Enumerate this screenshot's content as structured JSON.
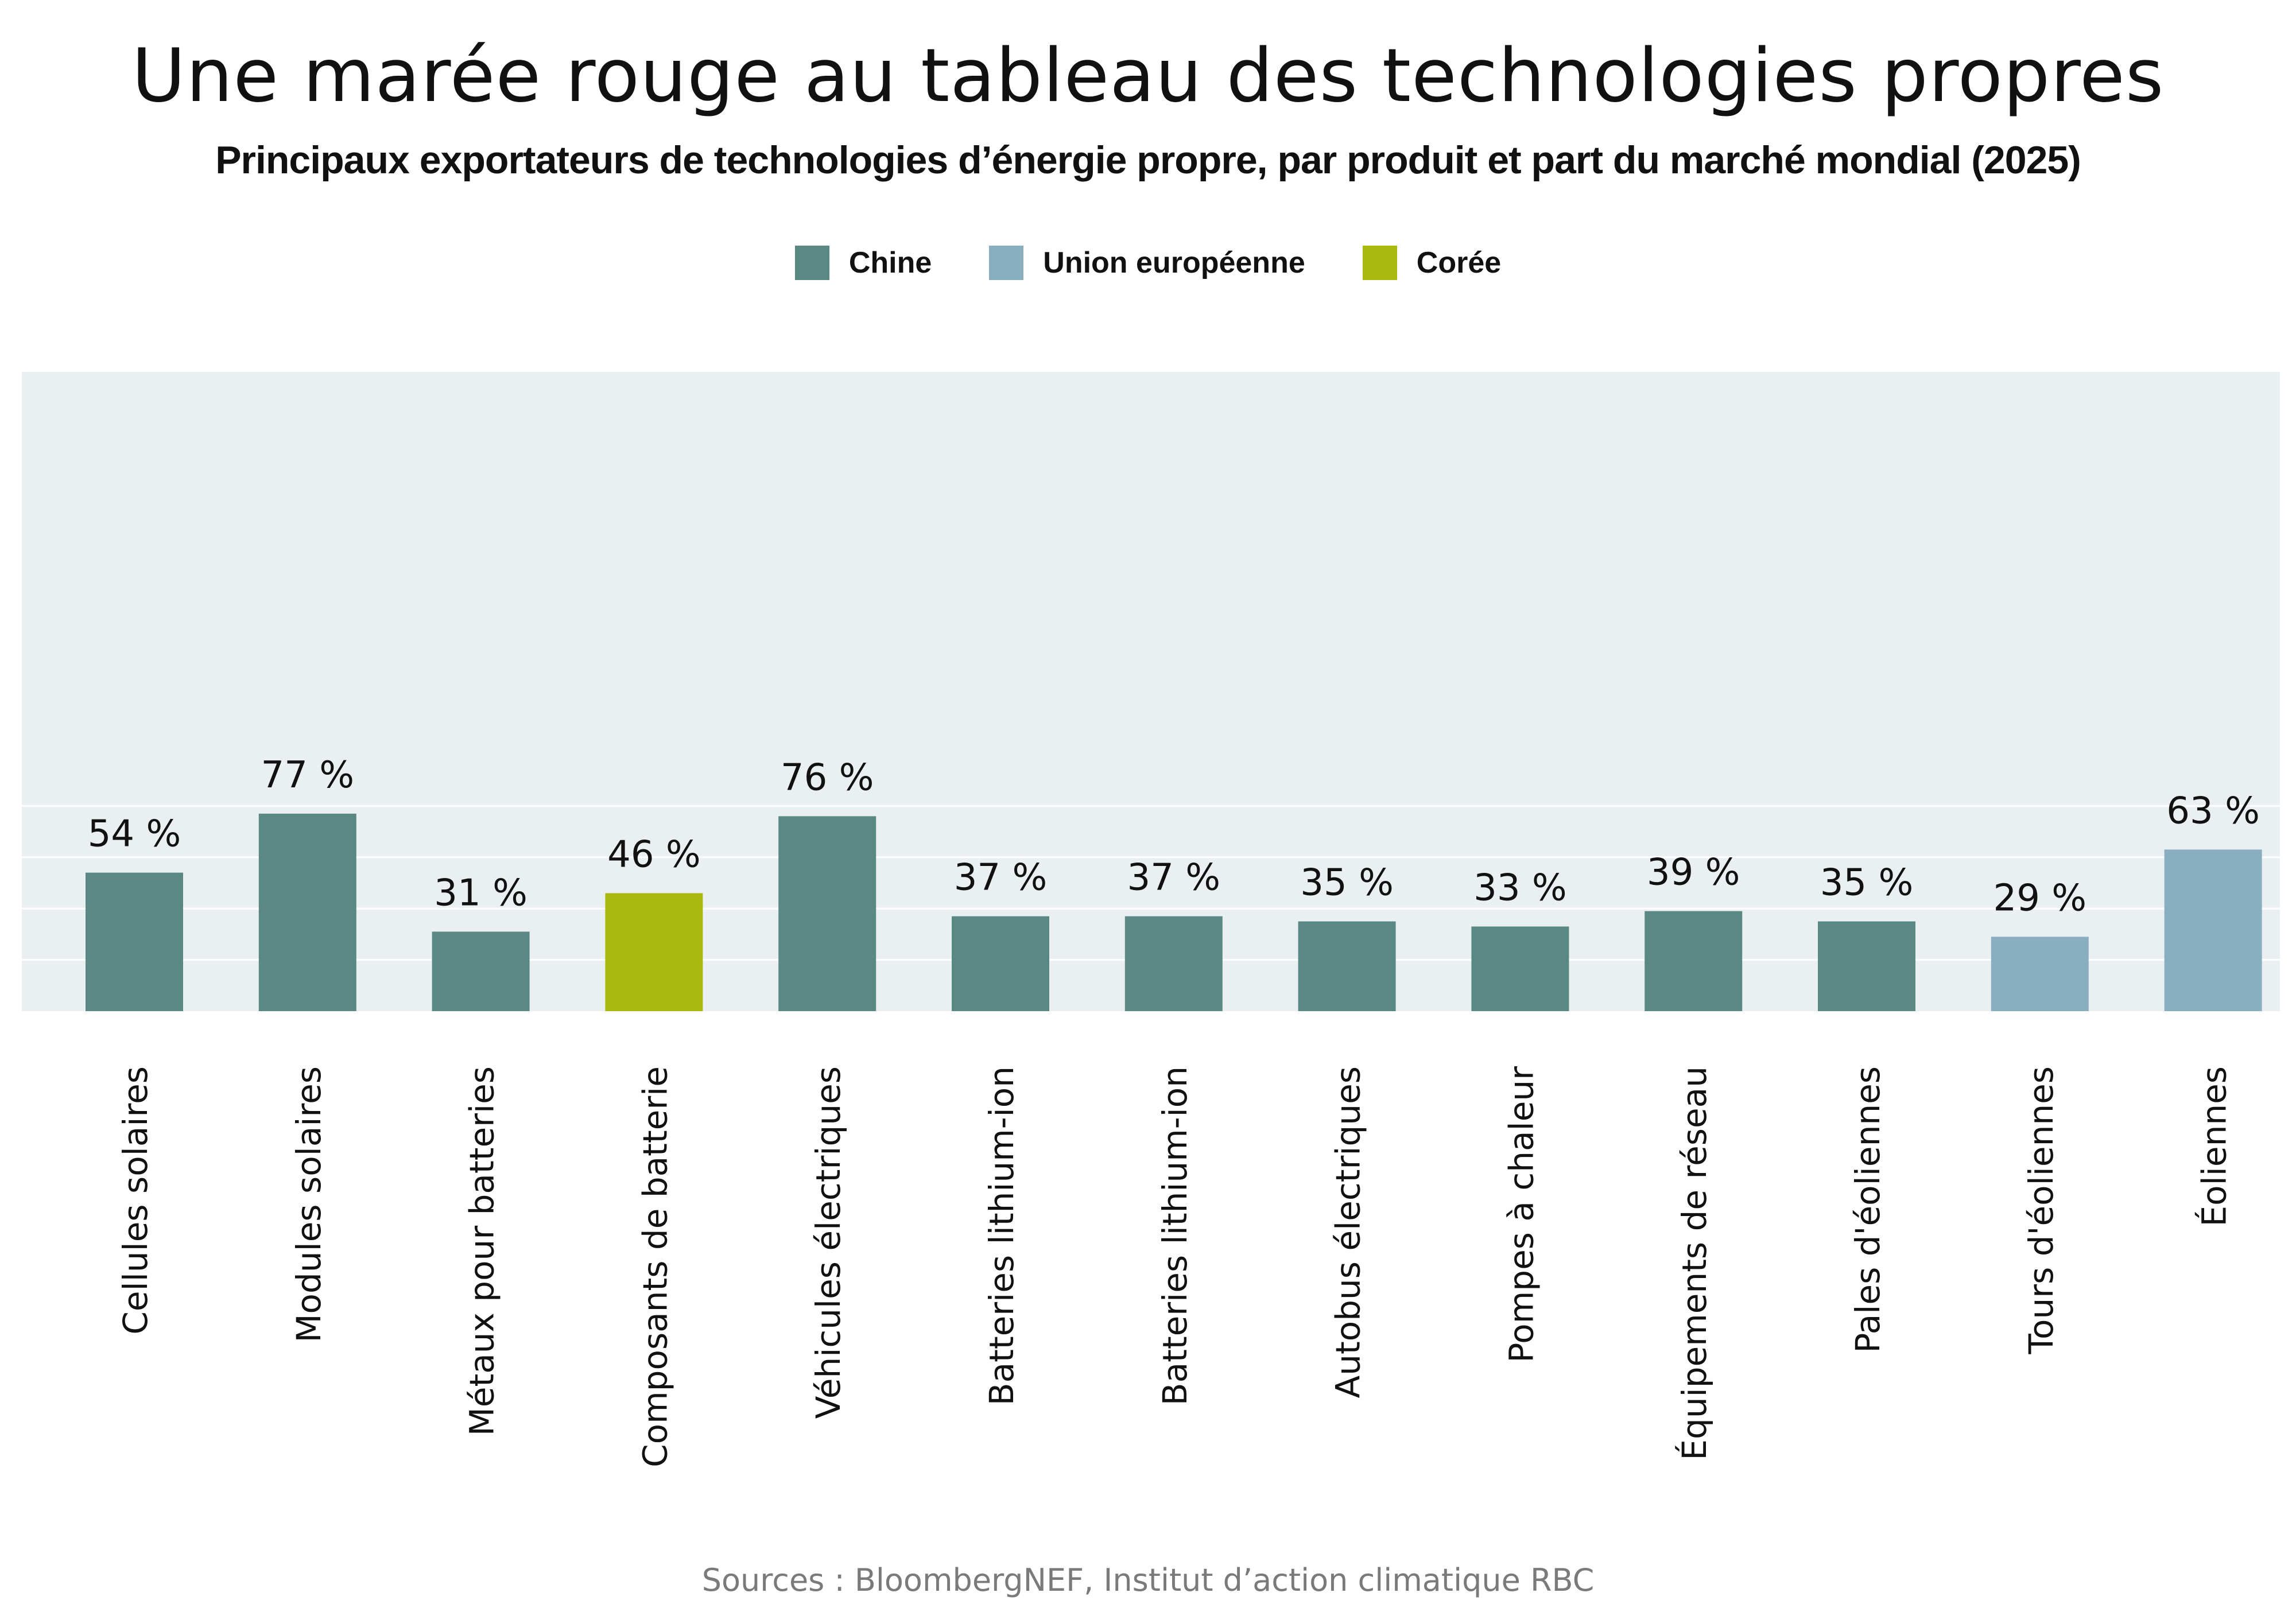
{
  "title": "Une marée rouge au tableau des technologies propres",
  "subtitle": "Principaux exportateurs de technologies d’énergie propre, par produit et part du marché mondial (2025)",
  "source": "Sources : BloombergNEF, Institut d’action climatique RBC",
  "chart_data": {
    "type": "bar",
    "title": "Une marée rouge au tableau des technologies propres",
    "subtitle": "Principaux exportateurs de technologies d’énergie propre, par produit et part du marché mondial (2025)",
    "xlabel": "",
    "ylabel": "",
    "ylim": [
      0,
      100
    ],
    "grid": true,
    "legend_position": "top-center",
    "unit": "%",
    "legend": [
      {
        "name": "Chine",
        "color": "#5a8984"
      },
      {
        "name": "Union européenne",
        "color": "#89aec0"
      },
      {
        "name": "Corée",
        "color": "#a9b90e"
      }
    ],
    "categories": [
      "Cellules solaires",
      "Modules solaires",
      "Métaux pour batteries",
      "Composants de batterie",
      "Véhicules électriques",
      "Batteries lithium-ion",
      "Batteries lithium-ion",
      "Autobus électriques",
      "Pompes à chaleur",
      "Équipements de réseau",
      "Pales d'éoliennes",
      "Tours d'éoliennes",
      "Éoliennes"
    ],
    "values": [
      54,
      77,
      31,
      46,
      76,
      37,
      37,
      35,
      33,
      39,
      35,
      29,
      63
    ],
    "value_labels": [
      "54 %",
      "77 %",
      "31 %",
      "46 %",
      "76 %",
      "37 %",
      "37 %",
      "35 %",
      "33 %",
      "39 %",
      "35 %",
      "29 %",
      "63 %"
    ],
    "exporters": [
      "Chine",
      "Chine",
      "Chine",
      "Corée",
      "Chine",
      "Chine",
      "Chine",
      "Chine",
      "Chine",
      "Chine",
      "Chine",
      "Union européenne",
      "Union européenne"
    ]
  }
}
